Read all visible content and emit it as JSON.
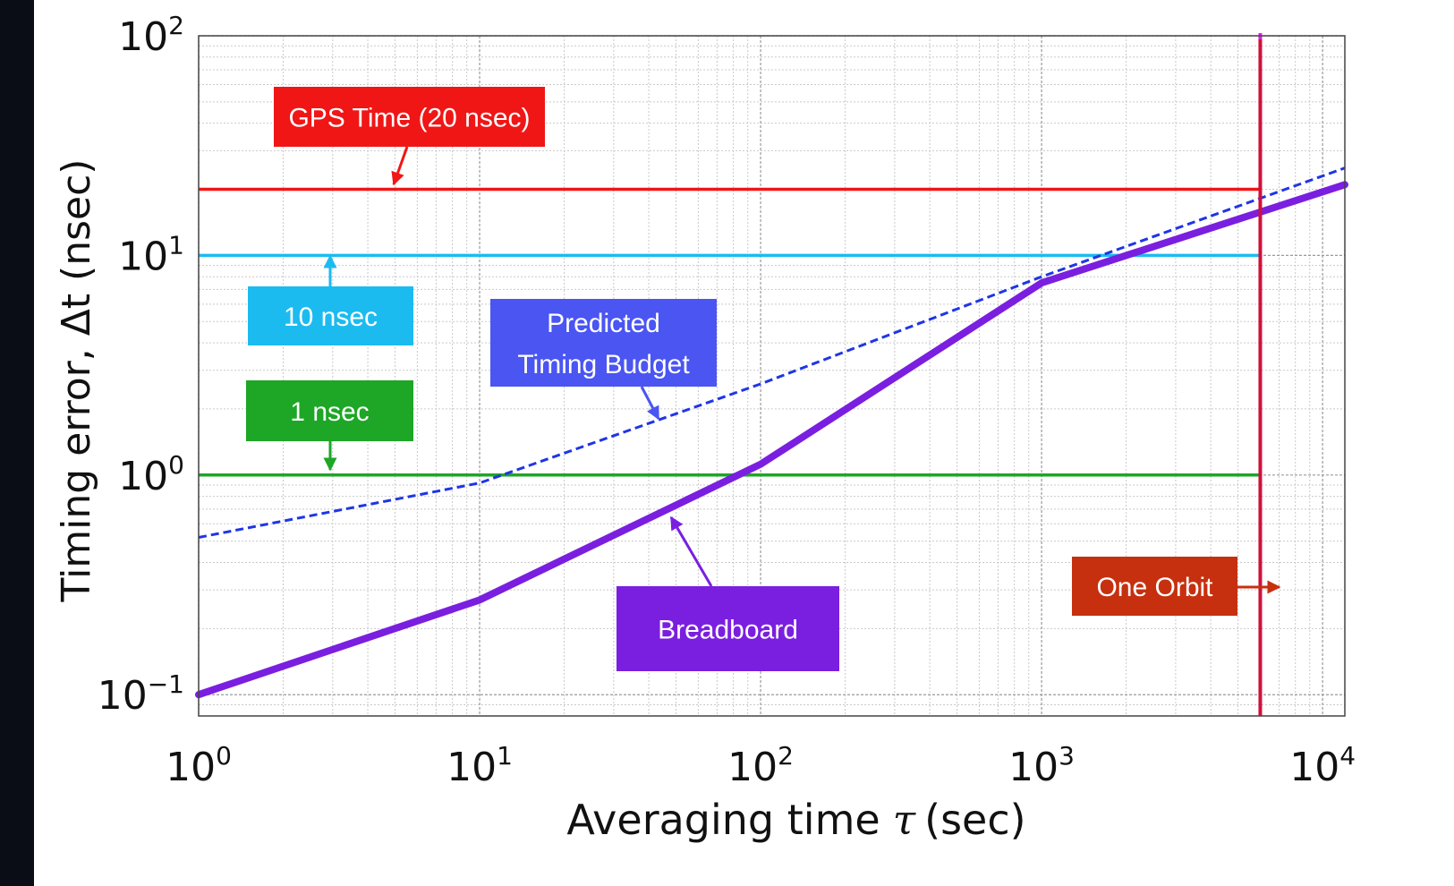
{
  "chart_data": {
    "type": "line",
    "xlabel_prefix": "Averaging time",
    "xlabel_symbol": "τ",
    "xlabel_unit": "(sec)",
    "ylabel": "Timing error, Δt (nsec)",
    "x_scale": "log",
    "y_scale": "log",
    "xlim": [
      1,
      12000
    ],
    "ylim": [
      0.08,
      100
    ],
    "grid": true,
    "x_ticks": [
      {
        "value": 1,
        "base": "10",
        "exp": "0"
      },
      {
        "value": 10,
        "base": "10",
        "exp": "1"
      },
      {
        "value": 100,
        "base": "10",
        "exp": "2"
      },
      {
        "value": 1000,
        "base": "10",
        "exp": "3"
      },
      {
        "value": 10000,
        "base": "10",
        "exp": "4"
      }
    ],
    "y_ticks": [
      {
        "value": 0.1,
        "base": "10",
        "exp": "−1"
      },
      {
        "value": 1,
        "base": "10",
        "exp": "0"
      },
      {
        "value": 10,
        "base": "10",
        "exp": "1"
      },
      {
        "value": 100,
        "base": "10",
        "exp": "2"
      }
    ],
    "series": [
      {
        "name": "Breadboard",
        "color": "#7a1fe0",
        "style": "solid-thick",
        "x": [
          1,
          10,
          100,
          1000,
          12000
        ],
        "y": [
          0.1,
          0.27,
          1.12,
          7.5,
          21
        ]
      },
      {
        "name": "Predicted Timing Budget",
        "color": "#1f35e6",
        "style": "dashed",
        "x": [
          1,
          10,
          100,
          1000,
          12000
        ],
        "y": [
          0.52,
          0.92,
          2.6,
          8.0,
          25
        ]
      }
    ],
    "reference_lines": [
      {
        "name": "GPS Time (20 nsec)",
        "orientation": "horizontal",
        "value": 20,
        "color": "#f01616"
      },
      {
        "name": "10 nsec",
        "orientation": "horizontal",
        "value": 10,
        "color": "#1bbbf0"
      },
      {
        "name": "1 nsec",
        "orientation": "horizontal",
        "value": 1,
        "color": "#1ea626"
      },
      {
        "name": "One Orbit",
        "orientation": "vertical",
        "value": 6000,
        "color": "#d0103a"
      }
    ],
    "annotations": [
      {
        "text_lines": [
          "GPS Time (20 nsec)"
        ],
        "color": "#f01616",
        "target": "GPS Time (20 nsec)"
      },
      {
        "text_lines": [
          "10 nsec"
        ],
        "color": "#1bbbf0",
        "target": "10 nsec"
      },
      {
        "text_lines": [
          "1 nsec"
        ],
        "color": "#1ea626",
        "target": "1 nsec"
      },
      {
        "text_lines": [
          "Predicted",
          "Timing Budget"
        ],
        "color": "#4a55f2",
        "target": "Predicted Timing Budget"
      },
      {
        "text_lines": [
          "Breadboard"
        ],
        "color": "#7a1fe0",
        "target": "Breadboard"
      },
      {
        "text_lines": [
          "One Orbit"
        ],
        "color": "#c6300f",
        "target": "One Orbit"
      }
    ]
  }
}
